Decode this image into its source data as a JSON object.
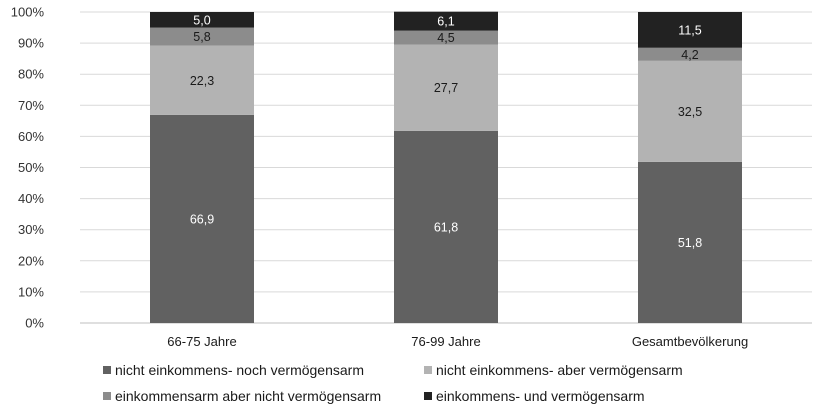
{
  "chart_data": {
    "type": "bar",
    "stacked": true,
    "categories": [
      "66-75 Jahre",
      "76-99 Jahre",
      "Gesamtbevölkerung"
    ],
    "series": [
      {
        "name": "nicht einkommens- noch vermögensarm",
        "values": [
          66.9,
          61.8,
          51.8
        ],
        "labels": [
          "66,9",
          "61,8",
          "51,8"
        ],
        "color": "#616161",
        "label_color": "#ffffff"
      },
      {
        "name": "nicht einkommens- aber vermögensarm",
        "values": [
          22.3,
          27.7,
          32.5
        ],
        "labels": [
          "22,3",
          "27,7",
          "32,5"
        ],
        "color": "#b3b3b3",
        "label_color": "#1a1a1a"
      },
      {
        "name": "einkommensarm aber nicht vermögensarm",
        "values": [
          5.8,
          4.5,
          4.2
        ],
        "labels": [
          "5,8",
          "4,5",
          "4,2"
        ],
        "color": "#8c8c8c",
        "label_color": "#1a1a1a"
      },
      {
        "name": "einkommens- und vermögensarm",
        "values": [
          5.0,
          6.1,
          11.5
        ],
        "labels": [
          "5,0",
          "6,1",
          "11,5"
        ],
        "color": "#222222",
        "label_color": "#ffffff"
      }
    ],
    "yticks": [
      "0%",
      "10%",
      "20%",
      "30%",
      "40%",
      "50%",
      "60%",
      "70%",
      "80%",
      "90%",
      "100%"
    ],
    "ylim": [
      0,
      100
    ],
    "grid": true,
    "legend_position": "bottom"
  }
}
